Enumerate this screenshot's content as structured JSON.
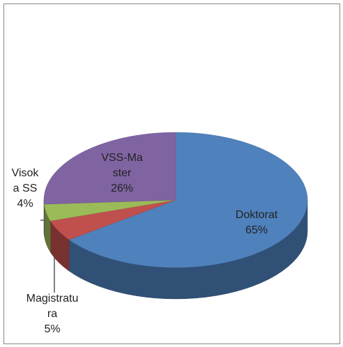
{
  "chart_data": {
    "type": "pie3d",
    "categories": [
      "Doktorat",
      "Magistratura",
      "Visoka SS",
      "VSS-Master"
    ],
    "values": [
      65,
      5,
      4,
      26
    ],
    "value_labels": [
      "65%",
      "5%",
      "4%",
      "26%"
    ],
    "colors": [
      "#4f81bd",
      "#c0504d",
      "#9bbb59",
      "#8064a2"
    ]
  }
}
